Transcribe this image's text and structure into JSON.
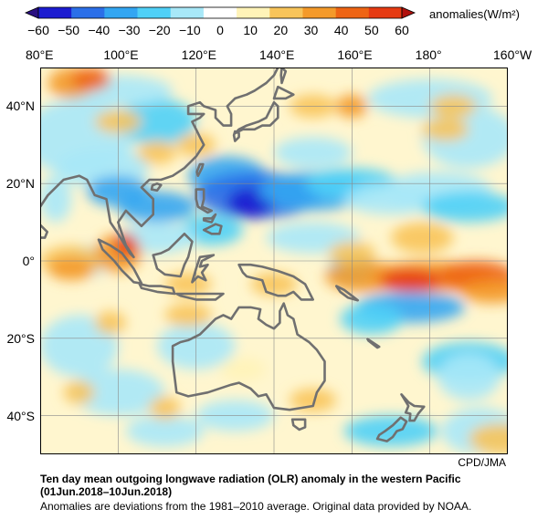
{
  "legend": {
    "unit_label": "anomalies(W/m²)",
    "ticks": [
      "−60",
      "−50",
      "−40",
      "−30",
      "−20",
      "−10",
      "0",
      "10",
      "20",
      "30",
      "40",
      "50",
      "60"
    ],
    "colors": [
      "#1c1cd0",
      "#2b6fe8",
      "#33a6f2",
      "#4fd0f7",
      "#a8e8f8",
      "#ffffff",
      "#fff3b8",
      "#f8c45a",
      "#f49a2a",
      "#ee6414",
      "#e63a12"
    ]
  },
  "map": {
    "lon_labels": [
      "80°E",
      "100°E",
      "120°E",
      "140°E",
      "160°E",
      "180°",
      "160°W"
    ],
    "lat_labels": [
      "40°N",
      "20°N",
      "0°",
      "20°S",
      "40°S"
    ],
    "land_color": "#707070"
  },
  "footer": {
    "credit": "CPD/JMA",
    "title": "Ten day mean outgoing longwave radiation (OLR) anomaly in the western Pacific",
    "period": "(01Jun.2018–10Jun.2018)",
    "note": "Anomalies are deviations from the 1981–2010 average. Original data provided by NOAA."
  }
}
